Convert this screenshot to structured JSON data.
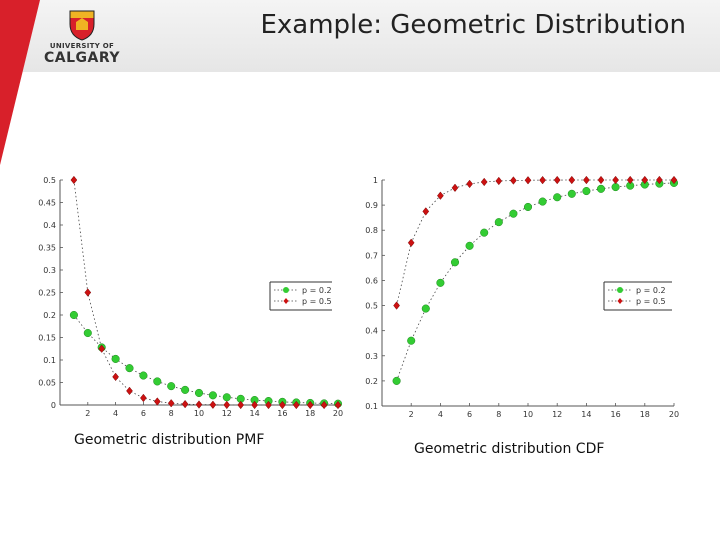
{
  "slide": {
    "title": "Example: Geometric Distribution",
    "logo": {
      "line1": "UNIVERSITY OF",
      "line2": "CALGARY",
      "icon": "university-crest-icon"
    },
    "colors": {
      "red": "#d8202a",
      "gold": "#f0b323",
      "green": "#33cc33",
      "diamond": "#cc1111"
    }
  },
  "captions": {
    "pmf": "Geometric distribution PMF",
    "cdf": "Geometric distribution CDF"
  },
  "chart_data": [
    {
      "type": "scatter",
      "id": "pmf",
      "title": "",
      "xlabel": "",
      "ylabel": "",
      "xlim": [
        0,
        20
      ],
      "ylim": [
        0,
        0.5
      ],
      "x_ticks": [
        2,
        4,
        6,
        8,
        10,
        12,
        14,
        16,
        18,
        20
      ],
      "x_tick_labels": [
        "2",
        "4",
        "6",
        "8",
        "10",
        "12",
        "14",
        "16",
        "18",
        "20"
      ],
      "y_ticks": [
        0,
        0.05,
        0.1,
        0.15,
        0.2,
        0.25,
        0.3,
        0.35,
        0.4,
        0.45,
        0.5
      ],
      "y_tick_labels": [
        "0",
        "0.05",
        "0.1",
        "0.15",
        "0.2",
        "0.25",
        "0.3",
        "0.35",
        "0.4",
        "0.45",
        "0.5"
      ],
      "grid": false,
      "legend": "right",
      "series": [
        {
          "name": "p = 0.2",
          "marker": "circle",
          "color": "#33cc33",
          "x": [
            1,
            2,
            3,
            4,
            5,
            6,
            7,
            8,
            9,
            10,
            11,
            12,
            13,
            14,
            15,
            16,
            17,
            18,
            19,
            20
          ],
          "values": [
            0.2,
            0.16,
            0.128,
            0.1024,
            0.0819,
            0.0655,
            0.0524,
            0.0419,
            0.0336,
            0.0268,
            0.0215,
            0.0172,
            0.0137,
            0.011,
            0.0088,
            0.007,
            0.0056,
            0.0045,
            0.0036,
            0.0029
          ]
        },
        {
          "name": "p = 0.5",
          "marker": "diamond",
          "color": "#cc1111",
          "x": [
            1,
            2,
            3,
            4,
            5,
            6,
            7,
            8,
            9,
            10,
            11,
            12,
            13,
            14,
            15,
            16,
            17,
            18,
            19,
            20
          ],
          "values": [
            0.5,
            0.25,
            0.125,
            0.0625,
            0.0313,
            0.0156,
            0.0078,
            0.0039,
            0.002,
            0.001,
            0.0005,
            0.0002,
            0.0001,
            0.0001,
            0,
            0,
            0,
            0,
            0,
            0
          ]
        }
      ]
    },
    {
      "type": "scatter",
      "id": "cdf",
      "title": "",
      "xlabel": "",
      "ylabel": "",
      "xlim": [
        0,
        20
      ],
      "ylim": [
        0.1,
        1
      ],
      "x_ticks": [
        2,
        4,
        6,
        8,
        10,
        12,
        14,
        16,
        18,
        20
      ],
      "x_tick_labels": [
        "2",
        "4",
        "6",
        "8",
        "10",
        "12",
        "14",
        "16",
        "18",
        "20"
      ],
      "y_ticks": [
        0.1,
        0.2,
        0.3,
        0.4,
        0.5,
        0.6,
        0.7,
        0.8,
        0.9,
        1
      ],
      "y_tick_labels": [
        "0.1",
        "0.2",
        "0.3",
        "0.4",
        "0.5",
        "0.6",
        "0.7",
        "0.8",
        "0.9",
        "1"
      ],
      "grid": false,
      "legend": "right",
      "series": [
        {
          "name": "p = 0.2",
          "marker": "circle",
          "color": "#33cc33",
          "x": [
            1,
            2,
            3,
            4,
            5,
            6,
            7,
            8,
            9,
            10,
            11,
            12,
            13,
            14,
            15,
            16,
            17,
            18,
            19,
            20
          ],
          "values": [
            0.2,
            0.36,
            0.488,
            0.5904,
            0.6723,
            0.7379,
            0.7903,
            0.8322,
            0.8658,
            0.8926,
            0.9141,
            0.9313,
            0.945,
            0.956,
            0.9648,
            0.9719,
            0.9775,
            0.982,
            0.9856,
            0.9885
          ]
        },
        {
          "name": "p = 0.5",
          "marker": "diamond",
          "color": "#cc1111",
          "x": [
            1,
            2,
            3,
            4,
            5,
            6,
            7,
            8,
            9,
            10,
            11,
            12,
            13,
            14,
            15,
            16,
            17,
            18,
            19,
            20
          ],
          "values": [
            0.5,
            0.75,
            0.875,
            0.9375,
            0.9688,
            0.9844,
            0.9922,
            0.9961,
            0.998,
            0.999,
            0.9995,
            0.9998,
            0.9999,
            0.9999,
            1,
            1,
            1,
            1,
            1,
            1
          ]
        }
      ]
    }
  ]
}
